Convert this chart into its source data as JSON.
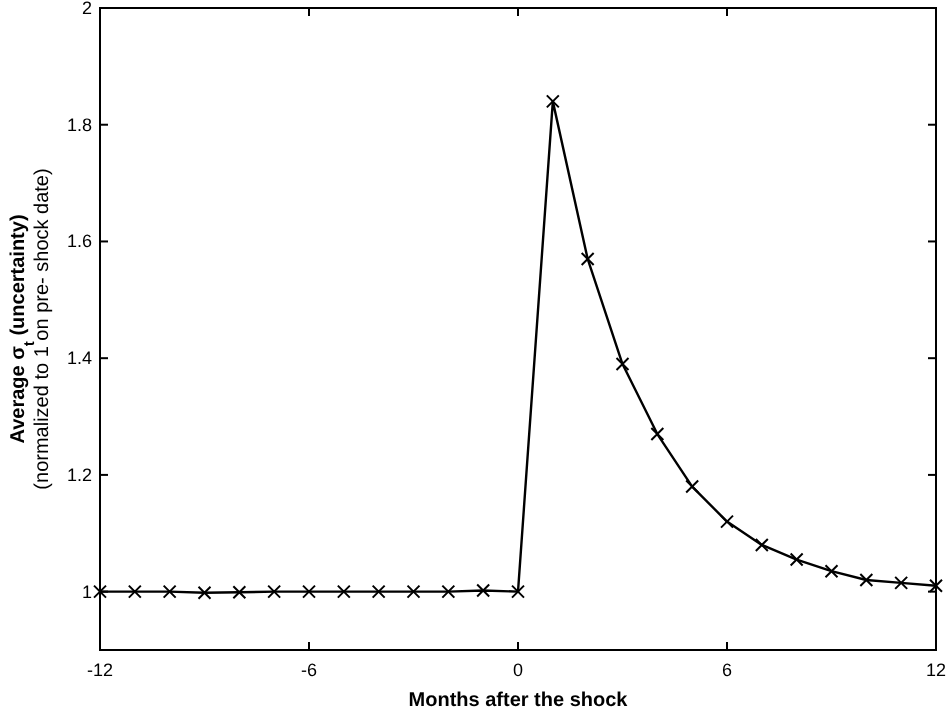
{
  "chart_data": {
    "type": "line",
    "xlabel": "Months after the shock",
    "ylabel": "Average σ$_{t}$ (uncertainty)\n(normalized to 1 on pre- shock date)",
    "x": [
      -12,
      -11,
      -10,
      -9,
      -8,
      -7,
      -6,
      -5,
      -4,
      -3,
      -2,
      -1,
      0,
      1,
      2,
      3,
      4,
      5,
      6,
      7,
      8,
      9,
      10,
      11,
      12
    ],
    "series": [
      {
        "color": "#000000",
        "values": [
          1.0,
          1.0,
          1.0,
          0.998,
          0.999,
          1.0,
          1.0,
          1.0,
          1.0,
          1.0,
          1.0,
          1.002,
          1.0,
          1.84,
          1.57,
          1.39,
          1.27,
          1.18,
          1.12,
          1.08,
          1.055,
          1.035,
          1.02,
          1.015,
          1.01
        ]
      }
    ],
    "xlim": [
      -12,
      12
    ],
    "xticks": [
      -12,
      -6,
      0,
      6,
      12
    ],
    "ylim": [
      0.9,
      2
    ],
    "yticks": [
      1,
      1.2,
      1.4,
      1.6,
      1.8,
      2
    ],
    "marker": "cross",
    "line_style": "solid",
    "grid": false
  }
}
